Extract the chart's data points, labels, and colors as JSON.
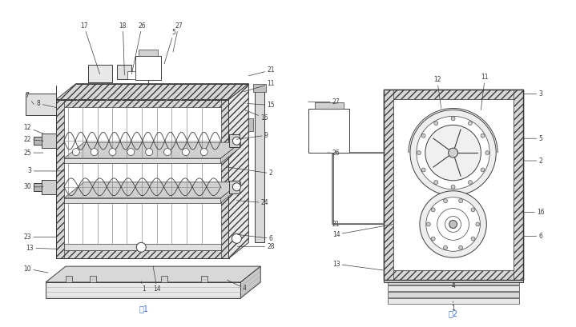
{
  "bg_color": "#ffffff",
  "line_color": "#3c3c3c",
  "lc": "#3c3c3c",
  "fig1_label": "图1",
  "fig2_label": "图2",
  "title_color": "#4472c4",
  "hatch_fc": "#d8d8d8",
  "wall_fc": "#e8e8e8",
  "inner_fc": "#f5f5f5"
}
